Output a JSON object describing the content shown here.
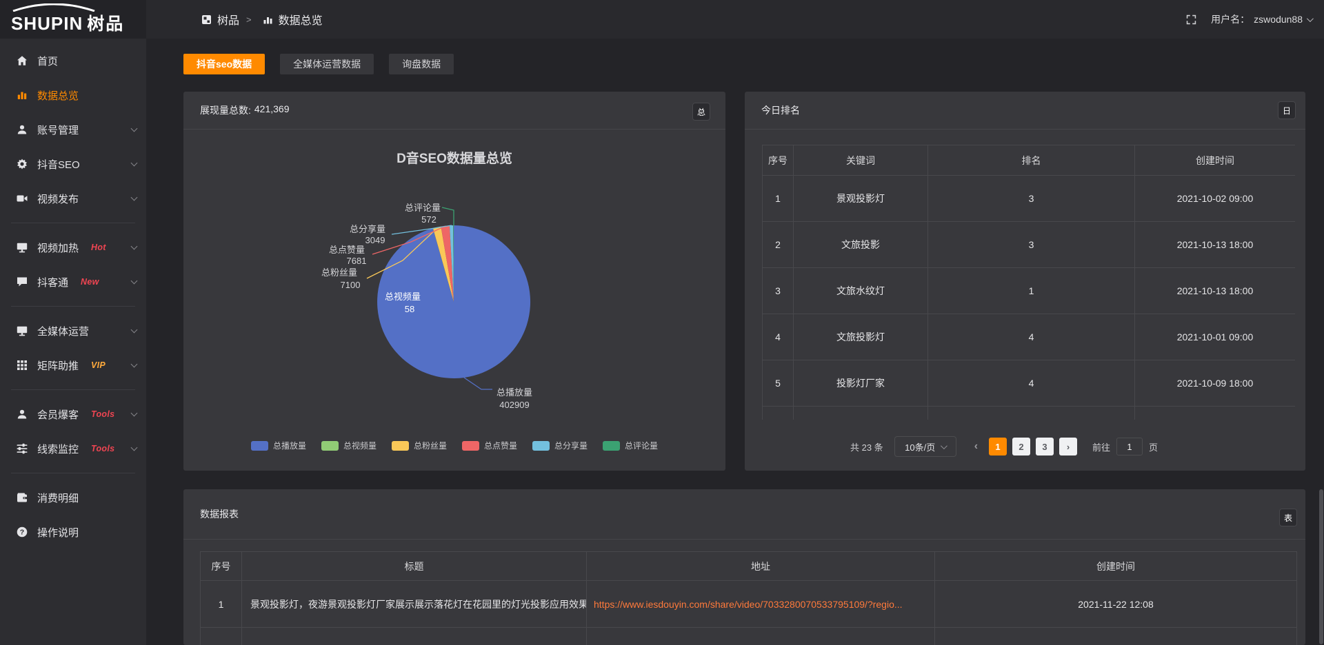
{
  "topbar": {
    "logo": {
      "brand": "SHUPIN",
      "brand_cn": "树品"
    },
    "breadcrumb": {
      "root": "树品",
      "separator": ">",
      "current": "数据总览"
    },
    "user": {
      "label": "用户名：",
      "name": "zswodun88"
    }
  },
  "sidebar": {
    "items": [
      {
        "label": "首页",
        "icon": "home-icon"
      },
      {
        "label": "数据总览",
        "icon": "bar-chart-icon",
        "active": true
      },
      {
        "label": "账号管理",
        "icon": "user-icon",
        "expandable": true
      },
      {
        "label": "抖音SEO",
        "icon": "gear-icon",
        "expandable": true
      },
      {
        "label": "视频发布",
        "icon": "video-upload-icon",
        "expandable": true
      },
      {
        "label": "视频加热",
        "icon": "monitor-icon",
        "badge": "Hot",
        "badge_color": "#ef4552",
        "expandable": true
      },
      {
        "label": "抖客通",
        "icon": "chat-icon",
        "badge": "New",
        "badge_color": "#ef4552",
        "expandable": true
      },
      {
        "label": "全媒体运营",
        "icon": "media-screen-icon",
        "expandable": true
      },
      {
        "label": "矩阵助推",
        "icon": "grid-matrix-icon",
        "badge": "VIP",
        "badge_color": "#ffaa3c",
        "expandable": true
      },
      {
        "label": "会员爆客",
        "icon": "member-icon",
        "badge": "Tools",
        "badge_color": "#ef4552",
        "expandable": true
      },
      {
        "label": "线索监控",
        "icon": "sliders-icon",
        "badge": "Tools",
        "badge_color": "#ef4552",
        "expandable": true
      },
      {
        "label": "消费明细",
        "icon": "wallet-icon"
      },
      {
        "label": "操作说明",
        "icon": "help-icon"
      }
    ]
  },
  "tabs": [
    {
      "label": "抖音seo数据",
      "active": true
    },
    {
      "label": "全媒体运营数据"
    },
    {
      "label": "询盘数据"
    }
  ],
  "chart_panel": {
    "stat_label": "展现量总数:",
    "stat_value": "421,369",
    "badge": "总"
  },
  "chart_data": {
    "type": "pie",
    "title": "D音SEO数据量总览",
    "total": 421369,
    "series": [
      {
        "name": "总播放量",
        "value": 402909,
        "color": "#5470c6"
      },
      {
        "name": "总视频量",
        "value": 58,
        "color": "#91cc75"
      },
      {
        "name": "总粉丝量",
        "value": 7100,
        "color": "#fac858"
      },
      {
        "name": "总点赞量",
        "value": 7681,
        "color": "#ee6666"
      },
      {
        "name": "总分享量",
        "value": 3049,
        "color": "#73c0de"
      },
      {
        "name": "总评论量",
        "value": 572,
        "color": "#3ba272"
      }
    ],
    "legend_position": "bottom"
  },
  "ranking_panel": {
    "title": "今日排名",
    "badge": "日",
    "table": {
      "headers": [
        "序号",
        "关键词",
        "排名",
        "创建时间"
      ],
      "rows": [
        [
          "1",
          "景观投影灯",
          "3",
          "2021-10-02 09:00"
        ],
        [
          "2",
          "文旅投影",
          "3",
          "2021-10-13 18:00"
        ],
        [
          "3",
          "文旅水纹灯",
          "1",
          "2021-10-13 18:00"
        ],
        [
          "4",
          "文旅投影灯",
          "4",
          "2021-10-01 09:00"
        ],
        [
          "5",
          "投影灯厂家",
          "4",
          "2021-10-09 18:00"
        ]
      ]
    },
    "pagination": {
      "total": "共 23 条",
      "page_size": "10条/页",
      "prev": "‹",
      "pages": [
        "1",
        "2",
        "3"
      ],
      "active_page": "1",
      "next": "›",
      "goto_label": "前往",
      "goto_value": "1",
      "goto_unit": "页"
    }
  },
  "report_panel": {
    "title": "数据报表",
    "badge": "表",
    "table": {
      "headers": [
        "序号",
        "标题",
        "地址",
        "创建时间"
      ],
      "rows": [
        [
          "1",
          "景观投影灯，夜游景观投影灯厂家展示展示落花灯在花园里的灯光投影应用效果 #",
          "https://www.iesdouyin.com/share/video/7033280070533795109/?regio...",
          "2021-11-22 12:08"
        ]
      ]
    }
  },
  "theme": {
    "accent": "#ff8a00",
    "link": "#ff7a3b",
    "hot_badge": "#ef4552",
    "vip_badge": "#ffaa3c"
  }
}
